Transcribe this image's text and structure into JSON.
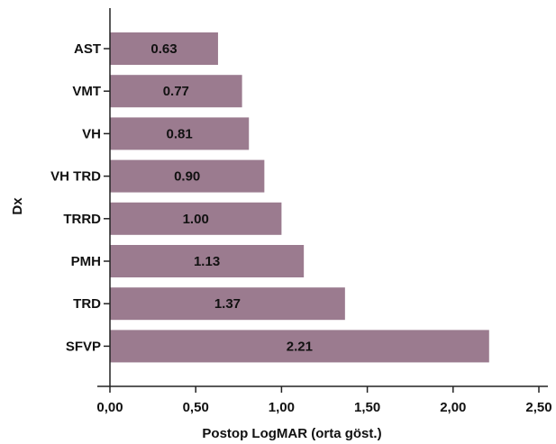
{
  "chart_data": {
    "type": "bar",
    "orientation": "horizontal",
    "categories": [
      "AST",
      "VMT",
      "VH",
      "VH TRD",
      "TRRD",
      "PMH",
      "TRD",
      "SFVP"
    ],
    "values": [
      0.63,
      0.77,
      0.81,
      0.9,
      1.0,
      1.13,
      1.37,
      2.21
    ],
    "value_labels": [
      "0.63",
      "0.77",
      "0.81",
      "0.90",
      "1.00",
      "1.13",
      "1.37",
      "2.21"
    ],
    "xlabel": "Postop LogMAR (orta göst.)",
    "ylabel": "Dx",
    "xlim": [
      0,
      2.5
    ],
    "x_ticks": [
      0,
      0.5,
      1.0,
      1.5,
      2.0,
      2.5
    ],
    "x_tick_labels": [
      "0,00",
      "0,50",
      "1,00",
      "1,50",
      "2,00",
      "2,50"
    ],
    "bar_color": "#9b7b8f",
    "grid": false,
    "legend": "none"
  }
}
